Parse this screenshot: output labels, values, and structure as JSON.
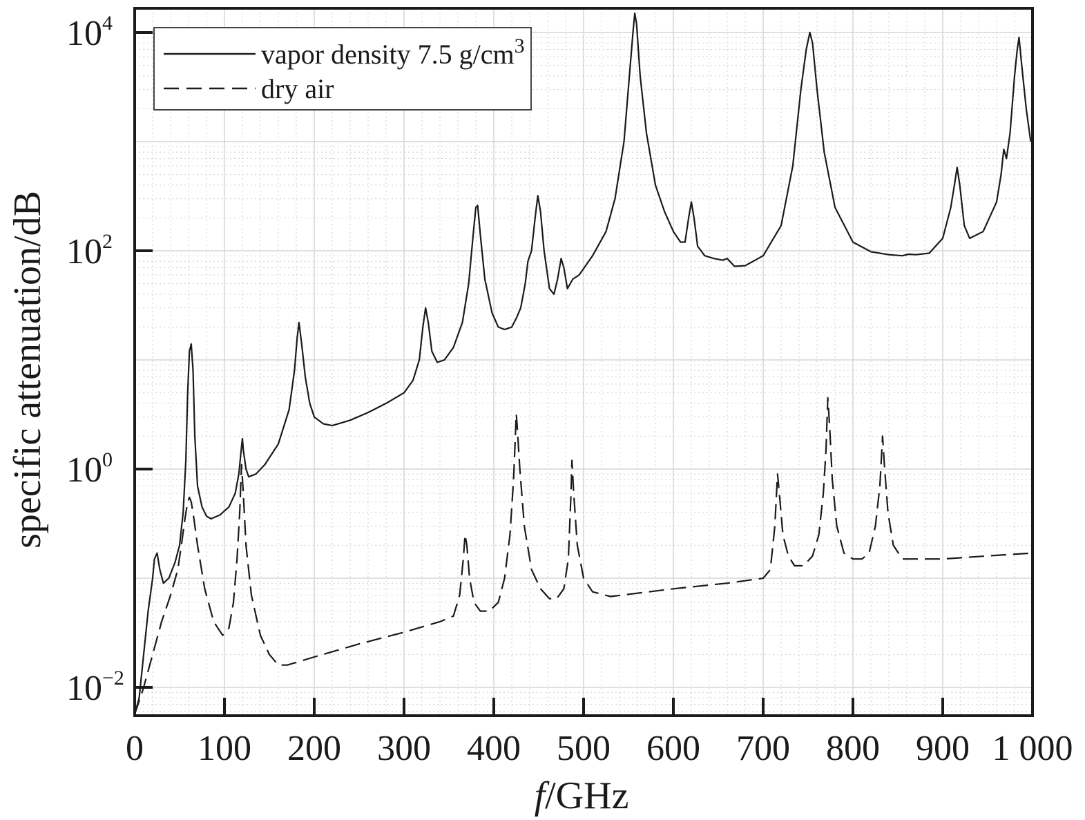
{
  "chart_data": {
    "type": "line",
    "xlabel_italic": "f",
    "xlabel_rest": "/GHz",
    "ylabel": "specific attenuation/dB",
    "y_scale": "log",
    "grid": "major and minor, dotted",
    "legend_placement": "top-left",
    "xlim": [
      0,
      1000
    ],
    "ylim": [
      0.004,
      20000
    ],
    "x_ticks": [
      0,
      100,
      200,
      300,
      400,
      500,
      600,
      700,
      800,
      900,
      1000
    ],
    "x_tick_labels": [
      "0",
      "100",
      "200",
      "300",
      "400",
      "500",
      "600",
      "700",
      "800",
      "900",
      "1 000"
    ],
    "y_ticks": [
      {
        "value": 0.01,
        "base": "10",
        "exp": "−2"
      },
      {
        "value": 1,
        "base": "10",
        "exp": "0"
      },
      {
        "value": 100,
        "base": "10",
        "exp": "2"
      },
      {
        "value": 10000,
        "base": "10",
        "exp": "4"
      }
    ],
    "series": [
      {
        "name": "vapor density 7.5 g/cm",
        "name_superscript": "3",
        "style": "solid",
        "color": "#1a1a1a",
        "points": [
          [
            0,
            0.004
          ],
          [
            5,
            0.008
          ],
          [
            10,
            0.02
          ],
          [
            15,
            0.05
          ],
          [
            20,
            0.1
          ],
          [
            22,
            0.15
          ],
          [
            25,
            0.17
          ],
          [
            28,
            0.12
          ],
          [
            32,
            0.09
          ],
          [
            38,
            0.1
          ],
          [
            45,
            0.14
          ],
          [
            50,
            0.2
          ],
          [
            54,
            0.4
          ],
          [
            57,
            1.2
          ],
          [
            59,
            5
          ],
          [
            61,
            12
          ],
          [
            63,
            14
          ],
          [
            65,
            8
          ],
          [
            67,
            2
          ],
          [
            70,
            0.7
          ],
          [
            75,
            0.45
          ],
          [
            80,
            0.37
          ],
          [
            85,
            0.35
          ],
          [
            95,
            0.38
          ],
          [
            105,
            0.45
          ],
          [
            112,
            0.6
          ],
          [
            116,
            0.9
          ],
          [
            119,
            1.6
          ],
          [
            120,
            1.9
          ],
          [
            121,
            1.5
          ],
          [
            124,
            1
          ],
          [
            127,
            0.85
          ],
          [
            135,
            0.9
          ],
          [
            145,
            1.1
          ],
          [
            160,
            1.7
          ],
          [
            172,
            3.5
          ],
          [
            178,
            8
          ],
          [
            181,
            16
          ],
          [
            183,
            22
          ],
          [
            186,
            14
          ],
          [
            190,
            7
          ],
          [
            195,
            4
          ],
          [
            200,
            3
          ],
          [
            210,
            2.6
          ],
          [
            220,
            2.5
          ],
          [
            240,
            2.8
          ],
          [
            260,
            3.3
          ],
          [
            280,
            4
          ],
          [
            300,
            5
          ],
          [
            310,
            6.5
          ],
          [
            317,
            10
          ],
          [
            321,
            20
          ],
          [
            324,
            30
          ],
          [
            327,
            22
          ],
          [
            331,
            12
          ],
          [
            337,
            9.5
          ],
          [
            345,
            10
          ],
          [
            355,
            13
          ],
          [
            365,
            22
          ],
          [
            372,
            50
          ],
          [
            377,
            140
          ],
          [
            380,
            250
          ],
          [
            382,
            260
          ],
          [
            385,
            140
          ],
          [
            390,
            55
          ],
          [
            398,
            27
          ],
          [
            405,
            20
          ],
          [
            412,
            19
          ],
          [
            420,
            20
          ],
          [
            425,
            24
          ],
          [
            430,
            30
          ],
          [
            435,
            50
          ],
          [
            438,
            80
          ],
          [
            442,
            100
          ],
          [
            446,
            200
          ],
          [
            449,
            320
          ],
          [
            452,
            230
          ],
          [
            456,
            100
          ],
          [
            462,
            45
          ],
          [
            467,
            40
          ],
          [
            471,
            55
          ],
          [
            475,
            85
          ],
          [
            478,
            70
          ],
          [
            482,
            45
          ],
          [
            488,
            55
          ],
          [
            495,
            60
          ],
          [
            510,
            90
          ],
          [
            525,
            150
          ],
          [
            535,
            300
          ],
          [
            545,
            1000
          ],
          [
            551,
            4000
          ],
          [
            555,
            10000
          ],
          [
            557,
            15000
          ],
          [
            559,
            12000
          ],
          [
            563,
            4000
          ],
          [
            570,
            1200
          ],
          [
            580,
            400
          ],
          [
            590,
            230
          ],
          [
            600,
            150
          ],
          [
            608,
            120
          ],
          [
            613,
            120
          ],
          [
            617,
            200
          ],
          [
            620,
            280
          ],
          [
            623,
            200
          ],
          [
            627,
            110
          ],
          [
            635,
            90
          ],
          [
            645,
            85
          ],
          [
            655,
            82
          ],
          [
            660,
            85
          ],
          [
            668,
            72
          ],
          [
            680,
            73
          ],
          [
            700,
            90
          ],
          [
            720,
            170
          ],
          [
            733,
            600
          ],
          [
            742,
            3000
          ],
          [
            748,
            7000
          ],
          [
            752,
            10000
          ],
          [
            755,
            8000
          ],
          [
            760,
            3000
          ],
          [
            768,
            800
          ],
          [
            780,
            250
          ],
          [
            800,
            120
          ],
          [
            820,
            98
          ],
          [
            840,
            92
          ],
          [
            855,
            90
          ],
          [
            862,
            93
          ],
          [
            870,
            92
          ],
          [
            885,
            95
          ],
          [
            900,
            130
          ],
          [
            909,
            250
          ],
          [
            913,
            400
          ],
          [
            916,
            580
          ],
          [
            919,
            400
          ],
          [
            924,
            170
          ],
          [
            930,
            130
          ],
          [
            945,
            150
          ],
          [
            960,
            280
          ],
          [
            965,
            500
          ],
          [
            968,
            850
          ],
          [
            971,
            700
          ],
          [
            975,
            1200
          ],
          [
            980,
            4000
          ],
          [
            983,
            7000
          ],
          [
            985,
            9000
          ],
          [
            988,
            5000
          ],
          [
            993,
            2000
          ],
          [
            998,
            1000
          ]
        ]
      },
      {
        "name": "dry air",
        "style": "dashed",
        "color": "#1a1a1a",
        "points": [
          [
            0,
            0.005
          ],
          [
            10,
            0.01
          ],
          [
            20,
            0.02
          ],
          [
            30,
            0.04
          ],
          [
            40,
            0.07
          ],
          [
            48,
            0.12
          ],
          [
            52,
            0.2
          ],
          [
            56,
            0.35
          ],
          [
            59,
            0.5
          ],
          [
            61,
            0.55
          ],
          [
            63,
            0.5
          ],
          [
            66,
            0.35
          ],
          [
            70,
            0.2
          ],
          [
            78,
            0.08
          ],
          [
            88,
            0.04
          ],
          [
            98,
            0.03
          ],
          [
            105,
            0.035
          ],
          [
            110,
            0.06
          ],
          [
            114,
            0.15
          ],
          [
            117,
            0.4
          ],
          [
            119,
            1.1
          ],
          [
            121,
            0.6
          ],
          [
            124,
            0.2
          ],
          [
            130,
            0.07
          ],
          [
            140,
            0.03
          ],
          [
            150,
            0.02
          ],
          [
            160,
            0.016
          ],
          [
            170,
            0.016
          ],
          [
            200,
            0.019
          ],
          [
            250,
            0.025
          ],
          [
            300,
            0.032
          ],
          [
            340,
            0.04
          ],
          [
            355,
            0.045
          ],
          [
            362,
            0.07
          ],
          [
            366,
            0.15
          ],
          [
            368,
            0.25
          ],
          [
            370,
            0.2
          ],
          [
            373,
            0.1
          ],
          [
            378,
            0.06
          ],
          [
            385,
            0.05
          ],
          [
            395,
            0.05
          ],
          [
            405,
            0.06
          ],
          [
            412,
            0.1
          ],
          [
            418,
            0.25
          ],
          [
            422,
            0.8
          ],
          [
            424,
            2
          ],
          [
            425,
            3.2
          ],
          [
            426,
            2.5
          ],
          [
            429,
            1
          ],
          [
            434,
            0.3
          ],
          [
            442,
            0.12
          ],
          [
            452,
            0.08
          ],
          [
            462,
            0.065
          ],
          [
            470,
            0.065
          ],
          [
            478,
            0.08
          ],
          [
            483,
            0.15
          ],
          [
            486,
            0.6
          ],
          [
            487,
            1.2
          ],
          [
            489,
            0.6
          ],
          [
            493,
            0.2
          ],
          [
            500,
            0.1
          ],
          [
            510,
            0.075
          ],
          [
            530,
            0.068
          ],
          [
            600,
            0.08
          ],
          [
            660,
            0.09
          ],
          [
            700,
            0.1
          ],
          [
            708,
            0.12
          ],
          [
            713,
            0.3
          ],
          [
            716,
            0.9
          ],
          [
            718,
            0.6
          ],
          [
            722,
            0.25
          ],
          [
            728,
            0.16
          ],
          [
            735,
            0.13
          ],
          [
            745,
            0.13
          ],
          [
            755,
            0.16
          ],
          [
            762,
            0.25
          ],
          [
            767,
            0.6
          ],
          [
            770,
            1.5
          ],
          [
            772,
            4.5
          ],
          [
            774,
            2.5
          ],
          [
            777,
            0.8
          ],
          [
            782,
            0.3
          ],
          [
            790,
            0.17
          ],
          [
            800,
            0.15
          ],
          [
            810,
            0.15
          ],
          [
            818,
            0.17
          ],
          [
            825,
            0.3
          ],
          [
            830,
            0.7
          ],
          [
            833,
            2
          ],
          [
            835,
            1.1
          ],
          [
            839,
            0.4
          ],
          [
            845,
            0.2
          ],
          [
            855,
            0.15
          ],
          [
            900,
            0.15
          ],
          [
            950,
            0.16
          ],
          [
            1000,
            0.17
          ]
        ]
      }
    ]
  }
}
